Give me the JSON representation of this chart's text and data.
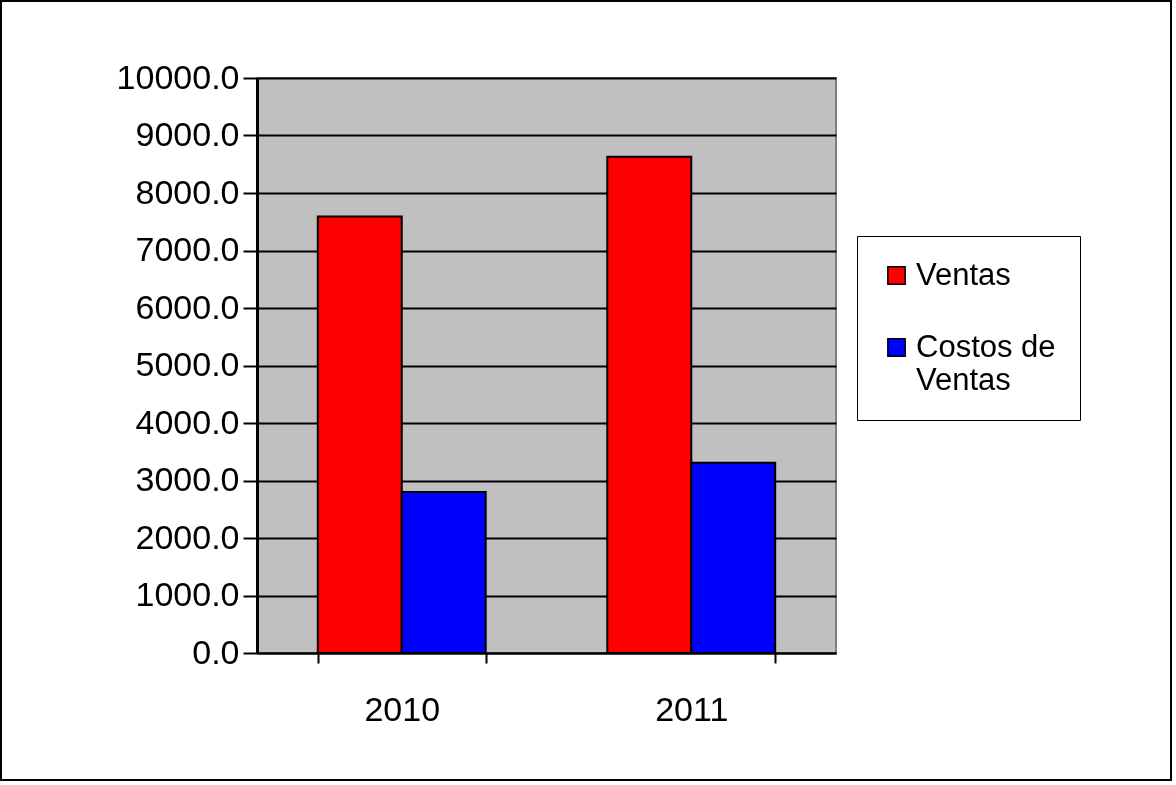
{
  "chart_data": {
    "type": "bar",
    "categories": [
      "2010",
      "2011"
    ],
    "series": [
      {
        "name": "Ventas",
        "color": "#ff0000",
        "values": [
          7590,
          8630
        ]
      },
      {
        "name": "Costos de Ventas",
        "color": "#0000ff",
        "values": [
          2800,
          3310
        ]
      }
    ],
    "ylim": [
      0,
      10000
    ],
    "yticks": [
      {
        "value": 0,
        "label": "0.0"
      },
      {
        "value": 1000,
        "label": "1000.0"
      },
      {
        "value": 2000,
        "label": "2000.0"
      },
      {
        "value": 3000,
        "label": "3000.0"
      },
      {
        "value": 4000,
        "label": "4000.0"
      },
      {
        "value": 5000,
        "label": "5000.0"
      },
      {
        "value": 6000,
        "label": "6000.0"
      },
      {
        "value": 7000,
        "label": "7000.0"
      },
      {
        "value": 8000,
        "label": "8000.0"
      },
      {
        "value": 9000,
        "label": "9000.0"
      },
      {
        "value": 10000,
        "label": "10000.0"
      }
    ],
    "grid": "y",
    "legend": "right"
  }
}
